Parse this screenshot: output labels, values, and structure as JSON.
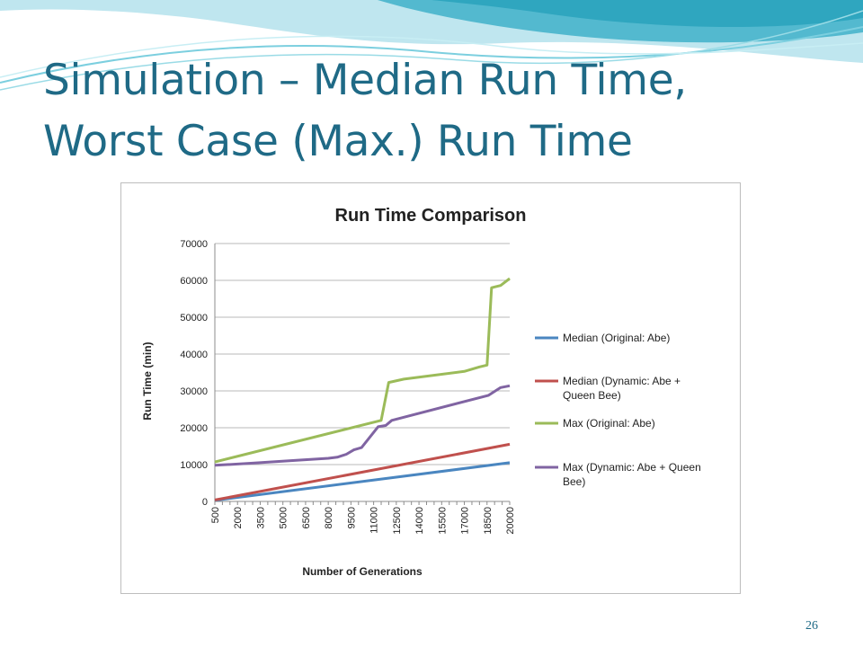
{
  "slide": {
    "title_line1": "Simulation – Median Run Time,",
    "title_line2": "Worst Case (Max.) Run Time",
    "page_number": "26"
  },
  "colors": {
    "title": "#1f6a86",
    "median_original": "#4a86c0",
    "median_dynamic": "#c0504d",
    "max_original": "#9bbb59",
    "max_dynamic": "#8064a2"
  },
  "chart_data": {
    "type": "line",
    "title": "Run Time Comparison",
    "xlabel": "Number of Generations",
    "ylabel": "Run Time (min)",
    "ylim": [
      0,
      70000
    ],
    "yticks": [
      "0",
      "10000",
      "20000",
      "30000",
      "40000",
      "50000",
      "60000",
      "70000"
    ],
    "xticks": [
      "500",
      "2000",
      "3500",
      "5000",
      "6500",
      "8000",
      "9500",
      "11000",
      "12500",
      "14000",
      "15500",
      "17000",
      "18500",
      "20000"
    ],
    "grid": true,
    "legend": "right",
    "series": [
      {
        "name": "Median (Original: Abe)",
        "color": "#4a86c0",
        "points": [
          [
            500,
            300
          ],
          [
            20000,
            10500
          ]
        ]
      },
      {
        "name": "Median (Dynamic: Abe + Queen Bee)",
        "color": "#c0504d",
        "points": [
          [
            500,
            400
          ],
          [
            20000,
            15500
          ]
        ]
      },
      {
        "name": "Max (Original: Abe)",
        "color": "#9bbb59",
        "points": [
          [
            500,
            10700
          ],
          [
            11500,
            22000
          ],
          [
            12000,
            32300
          ],
          [
            13000,
            33200
          ],
          [
            17000,
            35300
          ],
          [
            18000,
            36500
          ],
          [
            18500,
            37000
          ],
          [
            18800,
            58000
          ],
          [
            19400,
            58600
          ],
          [
            20000,
            60500
          ]
        ]
      },
      {
        "name": "Max (Dynamic: Abe + Queen Bee)",
        "color": "#8064a2",
        "points": [
          [
            500,
            9800
          ],
          [
            3000,
            10400
          ],
          [
            6000,
            11200
          ],
          [
            8000,
            11700
          ],
          [
            8600,
            12000
          ],
          [
            9200,
            12800
          ],
          [
            9700,
            14000
          ],
          [
            10200,
            14600
          ],
          [
            11300,
            20300
          ],
          [
            11800,
            20600
          ],
          [
            12200,
            22000
          ],
          [
            18600,
            28800
          ],
          [
            19400,
            30900
          ],
          [
            20000,
            31400
          ]
        ]
      }
    ]
  }
}
